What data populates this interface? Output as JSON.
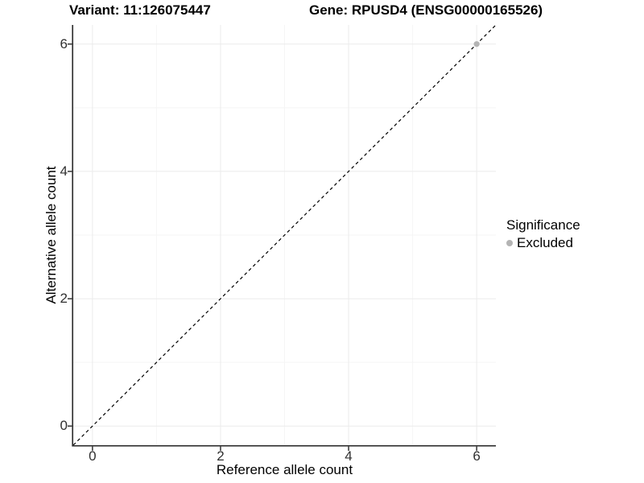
{
  "titles": {
    "variant": "Variant: 11:126075447",
    "gene": "Gene: RPUSD4 (ENSG00000165526)"
  },
  "axes": {
    "x": {
      "label": "Reference allele count"
    },
    "y": {
      "label": "Alternative allele count"
    }
  },
  "legend": {
    "title": "Significance",
    "items": [
      {
        "label": "Excluded",
        "color": "#b4b4b4"
      }
    ]
  },
  "colors": {
    "grid_major": "#ebebeb",
    "grid_minor": "#f5f5f5",
    "axis_line": "#333333",
    "tick_label": "#303030",
    "identity_line": "#000000",
    "point_excluded": "#b4b4b4"
  },
  "chart_data": {
    "type": "scatter",
    "title": "Variant: 11:126075447 | Gene: RPUSD4 (ENSG00000165526)",
    "xlabel": "Reference allele count",
    "ylabel": "Alternative allele count",
    "xlim": [
      -0.3,
      6.3
    ],
    "ylim": [
      -0.3,
      6.3
    ],
    "x_ticks": [
      0,
      2,
      4,
      6
    ],
    "y_ticks": [
      0,
      2,
      4,
      6
    ],
    "x_minor_ticks": [
      1,
      3,
      5
    ],
    "y_minor_ticks": [
      1,
      3,
      5
    ],
    "grid": "on",
    "legend_position": "right",
    "series": [
      {
        "name": "Excluded",
        "color": "#b4b4b4",
        "points": [
          {
            "x": 6,
            "y": 6
          }
        ]
      }
    ],
    "reference_line": {
      "style": "dashed",
      "slope": 1,
      "intercept": 0,
      "color": "#000000"
    }
  }
}
